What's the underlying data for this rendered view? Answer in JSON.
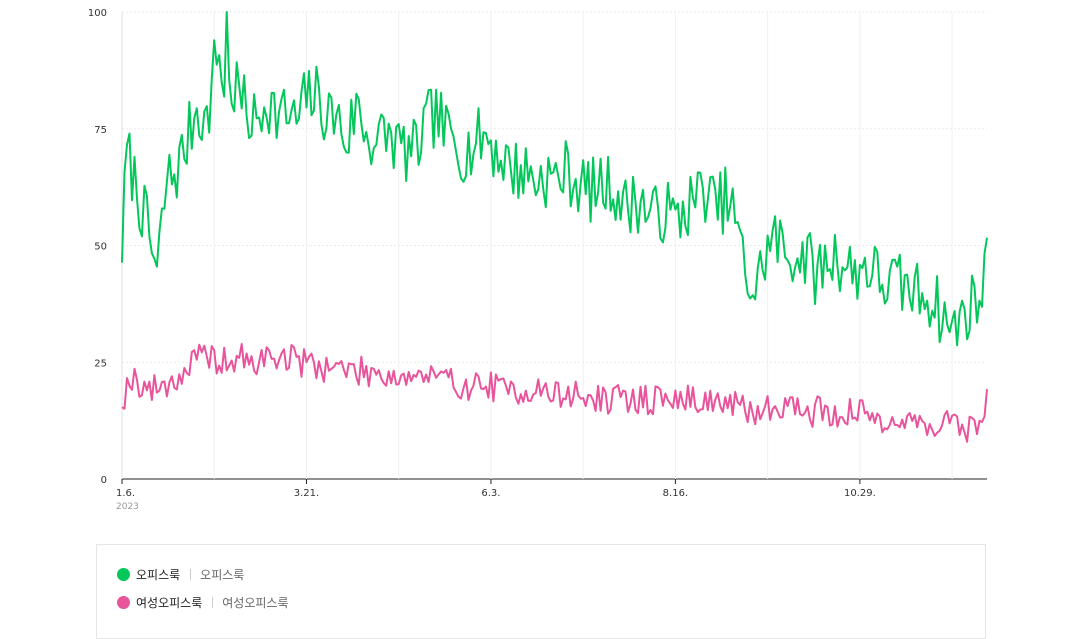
{
  "chart_data": {
    "type": "line",
    "x_tick_labels": [
      "1.6.",
      "3.21.",
      "6.3.",
      "8.16.",
      "10.29."
    ],
    "x_tick_days": [
      0,
      74,
      148,
      222,
      296
    ],
    "year_label": "2023",
    "y_ticks": [
      "0",
      "25",
      "50",
      "75",
      "100"
    ],
    "ylim": [
      0,
      100
    ],
    "x_grid_days": [
      0,
      37,
      74,
      111,
      148,
      185,
      222,
      259,
      296,
      333
    ],
    "grid": true,
    "series": [
      {
        "name": "오피스룩",
        "color": "#03c75a",
        "keyframes": [
          [
            0,
            50
          ],
          [
            2,
            70
          ],
          [
            6,
            62
          ],
          [
            10,
            54
          ],
          [
            14,
            44
          ],
          [
            18,
            64
          ],
          [
            22,
            66
          ],
          [
            26,
            72
          ],
          [
            30,
            80
          ],
          [
            34,
            76
          ],
          [
            38,
            92
          ],
          [
            42,
            82
          ],
          [
            46,
            84
          ],
          [
            50,
            78
          ],
          [
            54,
            76
          ],
          [
            58,
            82
          ],
          [
            62,
            78
          ],
          [
            66,
            78
          ],
          [
            70,
            76
          ],
          [
            74,
            82
          ],
          [
            78,
            82
          ],
          [
            82,
            78
          ],
          [
            86,
            78
          ],
          [
            90,
            72
          ],
          [
            94,
            80
          ],
          [
            98,
            74
          ],
          [
            102,
            72
          ],
          [
            106,
            74
          ],
          [
            110,
            72
          ],
          [
            114,
            70
          ],
          [
            118,
            70
          ],
          [
            122,
            76
          ],
          [
            126,
            78
          ],
          [
            130,
            74
          ],
          [
            134,
            72
          ],
          [
            138,
            70
          ],
          [
            142,
            72
          ],
          [
            146,
            74
          ],
          [
            150,
            70
          ],
          [
            154,
            68
          ],
          [
            158,
            66
          ],
          [
            162,
            66
          ],
          [
            166,
            64
          ],
          [
            170,
            65
          ],
          [
            174,
            64
          ],
          [
            178,
            66
          ],
          [
            182,
            64
          ],
          [
            186,
            62
          ],
          [
            190,
            62
          ],
          [
            194,
            63
          ],
          [
            198,
            62
          ],
          [
            202,
            58
          ],
          [
            206,
            60
          ],
          [
            210,
            58
          ],
          [
            214,
            56
          ],
          [
            218,
            58
          ],
          [
            222,
            55
          ],
          [
            226,
            58
          ],
          [
            230,
            60
          ],
          [
            234,
            62
          ],
          [
            238,
            58
          ],
          [
            242,
            60
          ],
          [
            246,
            56
          ],
          [
            250,
            44
          ],
          [
            254,
            40
          ],
          [
            258,
            48
          ],
          [
            262,
            52
          ],
          [
            266,
            48
          ],
          [
            270,
            48
          ],
          [
            274,
            48
          ],
          [
            278,
            44
          ],
          [
            282,
            46
          ],
          [
            286,
            48
          ],
          [
            290,
            46
          ],
          [
            294,
            44
          ],
          [
            298,
            46
          ],
          [
            302,
            44
          ],
          [
            306,
            42
          ],
          [
            310,
            42
          ],
          [
            314,
            41
          ],
          [
            318,
            40
          ],
          [
            322,
            40
          ],
          [
            326,
            38
          ],
          [
            330,
            34
          ],
          [
            334,
            32
          ],
          [
            338,
            36
          ],
          [
            342,
            38
          ],
          [
            345,
            40
          ],
          [
            347,
            47
          ]
        ],
        "seed": 7,
        "noise": 7.0
      },
      {
        "name": "여성오피스룩",
        "color": "#e8549b",
        "keyframes": [
          [
            0,
            17
          ],
          [
            4,
            22
          ],
          [
            8,
            20
          ],
          [
            12,
            19
          ],
          [
            16,
            20
          ],
          [
            20,
            21
          ],
          [
            24,
            22
          ],
          [
            28,
            25
          ],
          [
            32,
            26
          ],
          [
            36,
            26
          ],
          [
            40,
            25
          ],
          [
            44,
            25
          ],
          [
            48,
            26
          ],
          [
            52,
            24
          ],
          [
            56,
            26
          ],
          [
            60,
            26
          ],
          [
            64,
            26
          ],
          [
            68,
            26
          ],
          [
            72,
            25
          ],
          [
            76,
            25
          ],
          [
            80,
            24
          ],
          [
            84,
            24
          ],
          [
            88,
            24
          ],
          [
            92,
            23
          ],
          [
            96,
            23
          ],
          [
            100,
            23
          ],
          [
            104,
            23
          ],
          [
            108,
            22
          ],
          [
            112,
            22
          ],
          [
            116,
            22
          ],
          [
            120,
            22
          ],
          [
            124,
            22
          ],
          [
            128,
            21
          ],
          [
            132,
            21
          ],
          [
            136,
            20
          ],
          [
            140,
            20
          ],
          [
            144,
            20
          ],
          [
            148,
            20
          ],
          [
            152,
            19
          ],
          [
            156,
            19
          ],
          [
            160,
            19
          ],
          [
            164,
            19
          ],
          [
            168,
            19
          ],
          [
            172,
            18
          ],
          [
            176,
            18
          ],
          [
            180,
            18
          ],
          [
            184,
            18
          ],
          [
            188,
            17
          ],
          [
            192,
            17
          ],
          [
            196,
            17
          ],
          [
            200,
            17
          ],
          [
            204,
            17
          ],
          [
            208,
            17
          ],
          [
            212,
            17
          ],
          [
            216,
            17
          ],
          [
            220,
            17
          ],
          [
            224,
            17
          ],
          [
            228,
            17
          ],
          [
            232,
            17
          ],
          [
            236,
            17
          ],
          [
            240,
            16
          ],
          [
            244,
            16
          ],
          [
            248,
            15
          ],
          [
            252,
            14
          ],
          [
            256,
            15
          ],
          [
            260,
            15
          ],
          [
            264,
            16
          ],
          [
            268,
            16
          ],
          [
            272,
            15
          ],
          [
            276,
            14
          ],
          [
            280,
            15
          ],
          [
            284,
            14
          ],
          [
            288,
            14
          ],
          [
            292,
            14
          ],
          [
            296,
            14
          ],
          [
            300,
            14
          ],
          [
            304,
            13
          ],
          [
            308,
            13
          ],
          [
            312,
            12
          ],
          [
            316,
            12
          ],
          [
            320,
            12
          ],
          [
            324,
            12
          ],
          [
            328,
            12
          ],
          [
            332,
            12
          ],
          [
            336,
            11
          ],
          [
            340,
            11
          ],
          [
            344,
            12
          ],
          [
            347,
            17
          ]
        ],
        "seed": 19,
        "noise": 3.2
      }
    ]
  },
  "legend": {
    "items": [
      {
        "name": "오피스룩",
        "keyword": "오피스룩",
        "color": "#03c75a"
      },
      {
        "name": "여성오피스룩",
        "keyword": "여성오피스룩",
        "color": "#e8549b"
      }
    ]
  }
}
